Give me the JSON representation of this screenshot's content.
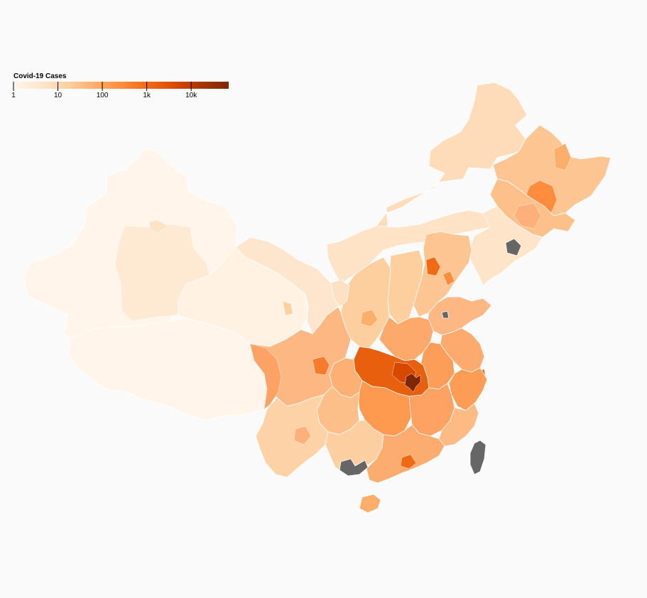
{
  "legend": {
    "title": "Covid-19 Cases",
    "scale": "log",
    "domain": [
      1,
      70000
    ],
    "ticks": [
      {
        "value": 1,
        "label": "1"
      },
      {
        "value": 10,
        "label": "10"
      },
      {
        "value": 100,
        "label": "100"
      },
      {
        "value": 1000,
        "label": "1k"
      },
      {
        "value": 10000,
        "label": "10k"
      }
    ],
    "colors": [
      "#fff5eb",
      "#fee6ce",
      "#fdd0a2",
      "#fdae6b",
      "#fd8d3c",
      "#f16913",
      "#d94801",
      "#a63603",
      "#7f2704"
    ]
  },
  "map": {
    "no_data_color": "#666666",
    "background": "#fafafa"
  }
}
